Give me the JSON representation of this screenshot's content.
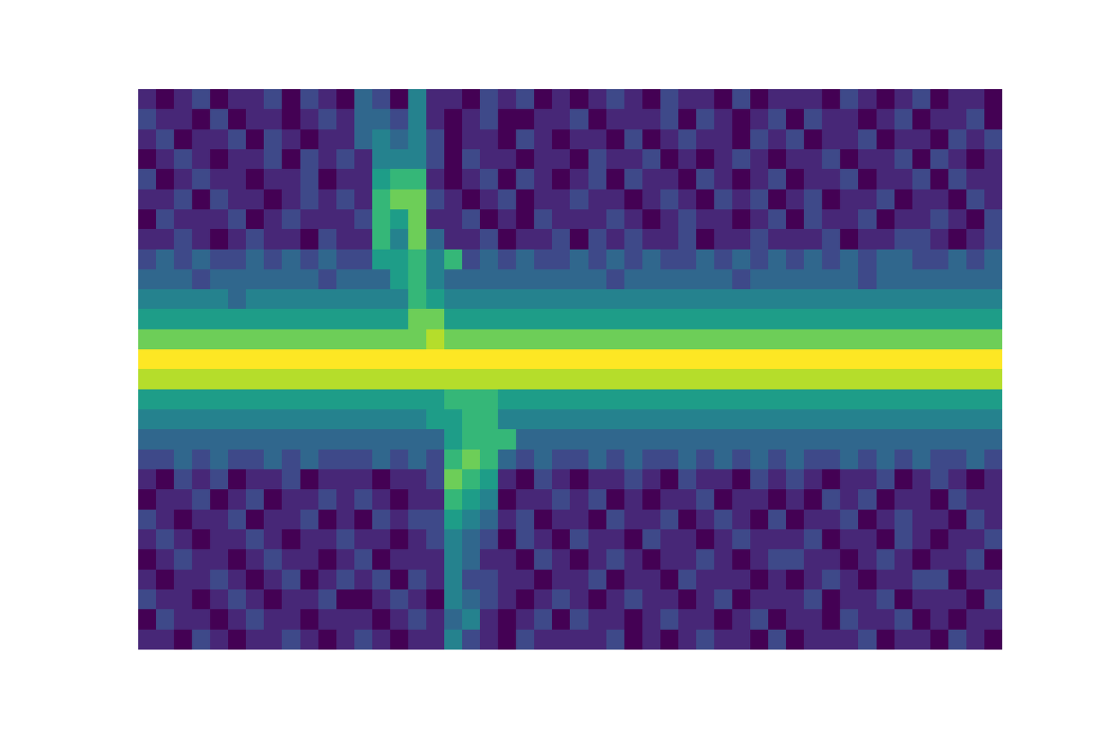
{
  "chart_data": {
    "type": "heatmap",
    "tick_labels": false,
    "color": "viridis",
    "cells": [
      [
        1,
        0,
        1,
        2,
        0,
        1,
        1,
        2,
        0,
        2,
        1,
        0,
        3,
        2,
        0,
        4,
        1,
        1,
        0,
        2,
        1,
        2,
        0,
        1,
        0,
        1,
        2,
        1,
        0,
        2,
        1,
        1,
        0,
        2,
        0,
        1,
        1,
        1,
        0,
        2,
        1,
        0,
        1,
        2,
        0,
        1,
        1,
        0
      ],
      [
        2,
        1,
        1,
        0,
        2,
        0,
        1,
        1,
        0,
        1,
        2,
        1,
        3,
        3,
        2,
        4,
        1,
        0,
        1,
        2,
        0,
        0,
        1,
        1,
        2,
        0,
        1,
        1,
        1,
        2,
        0,
        2,
        1,
        0,
        1,
        2,
        0,
        2,
        1,
        1,
        0,
        1,
        2,
        0,
        1,
        1,
        2,
        0
      ],
      [
        1,
        2,
        0,
        1,
        1,
        2,
        0,
        2,
        1,
        0,
        1,
        1,
        3,
        4,
        3,
        4,
        2,
        0,
        1,
        1,
        0,
        2,
        1,
        0,
        1,
        1,
        0,
        2,
        0,
        1,
        2,
        1,
        1,
        0,
        2,
        1,
        2,
        0,
        1,
        1,
        2,
        0,
        1,
        1,
        0,
        2,
        1,
        2
      ],
      [
        0,
        1,
        2,
        1,
        0,
        1,
        1,
        2,
        0,
        2,
        1,
        2,
        1,
        4,
        4,
        4,
        2,
        0,
        2,
        1,
        1,
        0,
        1,
        1,
        0,
        2,
        1,
        1,
        2,
        0,
        1,
        0,
        1,
        2,
        1,
        0,
        1,
        1,
        2,
        0,
        1,
        1,
        2,
        0,
        2,
        1,
        0,
        1
      ],
      [
        2,
        0,
        1,
        2,
        1,
        1,
        0,
        1,
        1,
        2,
        0,
        1,
        1,
        5,
        6,
        6,
        1,
        0,
        1,
        2,
        0,
        2,
        1,
        0,
        1,
        2,
        0,
        2,
        1,
        1,
        0,
        2,
        1,
        0,
        1,
        2,
        0,
        1,
        1,
        2,
        0,
        1,
        1,
        2,
        0,
        2,
        1,
        1
      ],
      [
        1,
        1,
        2,
        0,
        2,
        1,
        1,
        0,
        1,
        2,
        1,
        2,
        1,
        6,
        7,
        7,
        2,
        1,
        0,
        1,
        2,
        0,
        1,
        1,
        2,
        1,
        1,
        0,
        1,
        2,
        1,
        0,
        2,
        1,
        2,
        0,
        1,
        2,
        0,
        1,
        1,
        2,
        0,
        1,
        1,
        0,
        2,
        1
      ],
      [
        0,
        2,
        1,
        1,
        1,
        2,
        0,
        1,
        2,
        1,
        1,
        1,
        2,
        6,
        5,
        7,
        1,
        1,
        2,
        0,
        1,
        0,
        2,
        1,
        1,
        1,
        2,
        1,
        0,
        1,
        2,
        1,
        1,
        0,
        1,
        2,
        0,
        2,
        1,
        1,
        2,
        0,
        1,
        1,
        2,
        1,
        0,
        2
      ],
      [
        1,
        1,
        2,
        1,
        0,
        1,
        2,
        1,
        1,
        0,
        2,
        1,
        1,
        6,
        4,
        7,
        3,
        1,
        1,
        2,
        0,
        1,
        1,
        2,
        0,
        2,
        1,
        2,
        1,
        1,
        2,
        0,
        1,
        1,
        2,
        1,
        1,
        1,
        2,
        0,
        1,
        1,
        2,
        2,
        1,
        0,
        1,
        2
      ],
      [
        2,
        3,
        2,
        3,
        2,
        2,
        3,
        2,
        3,
        2,
        3,
        2,
        2,
        5,
        5,
        6,
        4,
        6,
        2,
        3,
        2,
        3,
        2,
        2,
        3,
        2,
        3,
        2,
        3,
        2,
        2,
        3,
        2,
        3,
        2,
        3,
        2,
        3,
        2,
        3,
        2,
        3,
        3,
        2,
        2,
        3,
        2,
        3
      ],
      [
        3,
        3,
        3,
        2,
        3,
        3,
        3,
        3,
        3,
        3,
        2,
        3,
        3,
        3,
        5,
        6,
        4,
        3,
        3,
        3,
        3,
        3,
        3,
        3,
        3,
        3,
        2,
        3,
        3,
        3,
        3,
        3,
        3,
        2,
        3,
        3,
        3,
        3,
        3,
        3,
        2,
        3,
        3,
        3,
        3,
        3,
        3,
        3
      ],
      [
        4,
        4,
        4,
        4,
        4,
        3,
        4,
        4,
        4,
        4,
        4,
        4,
        4,
        4,
        4,
        6,
        5,
        4,
        4,
        4,
        4,
        4,
        4,
        4,
        4,
        4,
        4,
        4,
        4,
        4,
        4,
        4,
        4,
        4,
        4,
        4,
        4,
        4,
        4,
        4,
        4,
        4,
        4,
        4,
        4,
        4,
        4,
        4
      ],
      [
        5,
        5,
        5,
        5,
        5,
        5,
        5,
        5,
        5,
        5,
        5,
        5,
        5,
        5,
        5,
        7,
        7,
        5,
        5,
        5,
        5,
        5,
        5,
        5,
        5,
        5,
        5,
        5,
        5,
        5,
        5,
        5,
        5,
        5,
        5,
        5,
        5,
        5,
        5,
        5,
        5,
        5,
        5,
        5,
        5,
        5,
        5,
        5
      ],
      [
        7,
        7,
        7,
        7,
        7,
        7,
        7,
        7,
        7,
        7,
        7,
        7,
        7,
        7,
        7,
        7,
        8,
        7,
        7,
        7,
        7,
        7,
        7,
        7,
        7,
        7,
        7,
        7,
        7,
        7,
        7,
        7,
        7,
        7,
        7,
        7,
        7,
        7,
        7,
        7,
        7,
        7,
        7,
        7,
        7,
        7,
        7,
        7
      ],
      [
        9,
        9,
        9,
        9,
        9,
        9,
        9,
        9,
        9,
        9,
        9,
        9,
        9,
        9,
        9,
        9,
        9,
        9,
        9,
        9,
        9,
        9,
        9,
        9,
        9,
        9,
        9,
        9,
        9,
        9,
        9,
        9,
        9,
        9,
        9,
        9,
        9,
        9,
        9,
        9,
        9,
        9,
        9,
        9,
        9,
        9,
        9,
        9
      ],
      [
        8,
        8,
        8,
        8,
        8,
        8,
        8,
        8,
        8,
        8,
        8,
        8,
        8,
        8,
        8,
        8,
        8,
        8,
        8,
        8,
        8,
        8,
        8,
        8,
        8,
        8,
        8,
        8,
        8,
        8,
        8,
        8,
        8,
        8,
        8,
        8,
        8,
        8,
        8,
        8,
        8,
        8,
        8,
        8,
        8,
        8,
        8,
        8
      ],
      [
        5,
        5,
        5,
        5,
        5,
        5,
        5,
        5,
        5,
        5,
        5,
        5,
        5,
        5,
        5,
        5,
        5,
        6,
        6,
        6,
        5,
        5,
        5,
        5,
        5,
        5,
        5,
        5,
        5,
        5,
        5,
        5,
        5,
        5,
        5,
        5,
        5,
        5,
        5,
        5,
        5,
        5,
        5,
        5,
        5,
        5,
        5,
        5
      ],
      [
        4,
        4,
        4,
        4,
        4,
        4,
        4,
        4,
        4,
        4,
        4,
        4,
        4,
        4,
        4,
        4,
        5,
        5,
        6,
        6,
        4,
        4,
        4,
        4,
        4,
        4,
        4,
        4,
        4,
        4,
        4,
        4,
        4,
        4,
        4,
        4,
        4,
        4,
        4,
        4,
        4,
        4,
        4,
        4,
        4,
        4,
        4,
        4
      ],
      [
        3,
        3,
        3,
        3,
        3,
        3,
        3,
        3,
        3,
        3,
        3,
        3,
        3,
        3,
        3,
        3,
        3,
        5,
        6,
        6,
        6,
        3,
        3,
        3,
        3,
        3,
        3,
        3,
        3,
        3,
        3,
        3,
        3,
        3,
        3,
        3,
        3,
        3,
        3,
        3,
        3,
        3,
        3,
        3,
        3,
        3,
        3,
        3
      ],
      [
        2,
        2,
        3,
        2,
        3,
        2,
        2,
        3,
        2,
        3,
        2,
        2,
        2,
        3,
        2,
        3,
        2,
        6,
        7,
        6,
        3,
        2,
        3,
        2,
        2,
        3,
        2,
        3,
        2,
        2,
        3,
        2,
        3,
        2,
        3,
        2,
        3,
        2,
        2,
        3,
        2,
        3,
        2,
        3,
        2,
        2,
        3,
        2
      ],
      [
        1,
        0,
        2,
        1,
        2,
        0,
        1,
        1,
        2,
        0,
        1,
        1,
        1,
        0,
        1,
        1,
        2,
        7,
        6,
        5,
        1,
        0,
        2,
        1,
        0,
        1,
        1,
        2,
        1,
        0,
        2,
        1,
        1,
        0,
        2,
        1,
        2,
        1,
        0,
        1,
        1,
        2,
        0,
        1,
        2,
        1,
        0,
        1
      ],
      [
        0,
        1,
        1,
        2,
        0,
        1,
        2,
        0,
        1,
        1,
        2,
        1,
        2,
        1,
        0,
        1,
        1,
        6,
        5,
        4,
        0,
        1,
        1,
        2,
        1,
        2,
        0,
        1,
        0,
        1,
        1,
        2,
        0,
        1,
        1,
        0,
        1,
        0,
        2,
        1,
        2,
        0,
        1,
        1,
        0,
        2,
        1,
        1
      ],
      [
        2,
        1,
        0,
        1,
        1,
        2,
        0,
        1,
        1,
        2,
        0,
        1,
        0,
        2,
        1,
        2,
        2,
        5,
        4,
        3,
        1,
        2,
        0,
        1,
        1,
        0,
        2,
        1,
        1,
        2,
        0,
        1,
        2,
        1,
        0,
        2,
        0,
        1,
        1,
        2,
        0,
        1,
        2,
        1,
        1,
        0,
        2,
        1
      ],
      [
        1,
        2,
        1,
        0,
        1,
        1,
        2,
        1,
        0,
        1,
        1,
        2,
        1,
        1,
        0,
        1,
        2,
        4,
        3,
        2,
        0,
        2,
        1,
        0,
        2,
        1,
        1,
        0,
        2,
        1,
        1,
        0,
        1,
        2,
        1,
        1,
        1,
        2,
        0,
        1,
        1,
        0,
        2,
        1,
        0,
        1,
        1,
        2
      ],
      [
        0,
        1,
        2,
        1,
        1,
        0,
        1,
        2,
        1,
        1,
        0,
        1,
        2,
        0,
        1,
        1,
        1,
        4,
        3,
        1,
        1,
        0,
        2,
        1,
        0,
        1,
        2,
        1,
        0,
        1,
        1,
        2,
        1,
        0,
        1,
        2,
        2,
        1,
        1,
        0,
        1,
        2,
        1,
        0,
        1,
        1,
        2,
        0
      ],
      [
        1,
        0,
        1,
        1,
        2,
        1,
        0,
        1,
        2,
        0,
        1,
        2,
        1,
        2,
        0,
        2,
        1,
        4,
        2,
        2,
        1,
        1,
        0,
        1,
        1,
        2,
        0,
        1,
        1,
        0,
        2,
        1,
        1,
        1,
        0,
        1,
        0,
        1,
        2,
        1,
        0,
        1,
        1,
        2,
        2,
        0,
        1,
        1
      ],
      [
        2,
        1,
        1,
        0,
        1,
        2,
        1,
        0,
        1,
        1,
        2,
        0,
        0,
        1,
        2,
        1,
        0,
        4,
        3,
        2,
        1,
        0,
        1,
        2,
        1,
        0,
        1,
        2,
        1,
        1,
        0,
        1,
        2,
        0,
        1,
        1,
        1,
        2,
        0,
        1,
        1,
        2,
        0,
        1,
        1,
        1,
        0,
        2
      ],
      [
        0,
        2,
        1,
        1,
        0,
        1,
        2,
        1,
        1,
        0,
        1,
        1,
        1,
        0,
        1,
        2,
        1,
        3,
        4,
        1,
        0,
        1,
        2,
        0,
        2,
        1,
        1,
        0,
        1,
        2,
        1,
        1,
        0,
        1,
        2,
        0,
        1,
        1,
        0,
        2,
        1,
        1,
        2,
        0,
        1,
        0,
        1,
        1
      ],
      [
        1,
        1,
        0,
        2,
        1,
        0,
        1,
        1,
        2,
        1,
        0,
        1,
        2,
        1,
        0,
        1,
        1,
        4,
        2,
        1,
        0,
        2,
        1,
        1,
        1,
        1,
        2,
        0,
        1,
        0,
        1,
        2,
        1,
        1,
        0,
        2,
        0,
        1,
        1,
        1,
        2,
        0,
        1,
        1,
        0,
        2,
        1,
        0
      ]
    ]
  }
}
